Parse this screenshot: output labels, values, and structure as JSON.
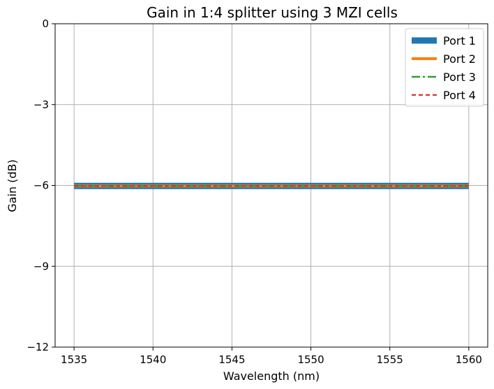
{
  "chart_data": {
    "type": "line",
    "title": "Gain in 1:4 splitter using 3 MZI cells",
    "xlabel": "Wavelength (nm)",
    "ylabel": "Gain (dB)",
    "xlim": [
      1533.8,
      1561.2
    ],
    "ylim": [
      -12,
      0
    ],
    "xticks": [
      1535,
      1540,
      1545,
      1550,
      1555,
      1560
    ],
    "xtick_labels": [
      "1535",
      "1540",
      "1545",
      "1550",
      "1555",
      "1560"
    ],
    "yticks": [
      0,
      -3,
      -6,
      -9,
      -12
    ],
    "ytick_labels": [
      "0",
      "−3",
      "−6",
      "−9",
      "−12"
    ],
    "grid": true,
    "legend_position": "top-right",
    "x": [
      1535,
      1540,
      1545,
      1550,
      1555,
      1560
    ],
    "series": [
      {
        "name": "Port 1",
        "color": "#1f77b4",
        "style": "solid-thick",
        "values": [
          -6.02,
          -6.02,
          -6.02,
          -6.02,
          -6.02,
          -6.02
        ]
      },
      {
        "name": "Port 2",
        "color": "#ff7f0e",
        "style": "solid-medium",
        "values": [
          -6.02,
          -6.02,
          -6.02,
          -6.02,
          -6.02,
          -6.02
        ]
      },
      {
        "name": "Port 3",
        "color": "#2ca02c",
        "style": "dashdot",
        "values": [
          -6.02,
          -6.02,
          -6.02,
          -6.02,
          -6.02,
          -6.02
        ]
      },
      {
        "name": "Port 4",
        "color": "#d62728",
        "style": "dashed",
        "values": [
          -6.02,
          -6.02,
          -6.02,
          -6.02,
          -6.02,
          -6.02
        ]
      }
    ]
  }
}
